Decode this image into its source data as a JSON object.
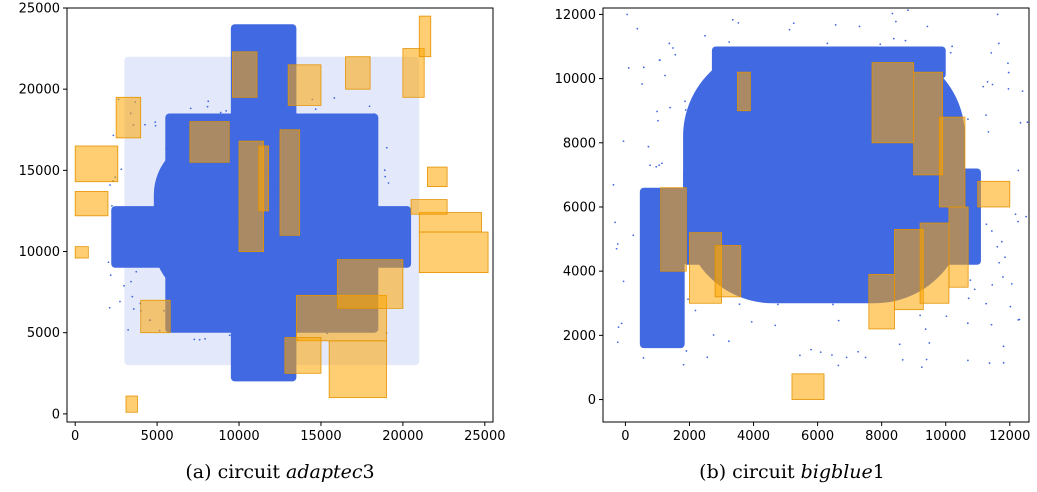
{
  "colors": {
    "placement": "#4169e1",
    "blocks": "#ffa500",
    "block_edge": "#e39200"
  },
  "chart_data": [
    {
      "type": "scatter",
      "title": "",
      "caption_prefix": "(a) circuit ",
      "caption_name": "adaptec",
      "caption_num": "3",
      "xlim": [
        -500,
        25500
      ],
      "ylim": [
        -500,
        25000
      ],
      "xticks": [
        0,
        5000,
        10000,
        15000,
        20000,
        25000
      ],
      "yticks": [
        0,
        5000,
        10000,
        15000,
        20000,
        25000
      ],
      "xtick_labels": [
        "0",
        "5000",
        "10000",
        "15000",
        "20000",
        "25000"
      ],
      "ytick_labels": [
        "0",
        "5000",
        "10000",
        "15000",
        "20000",
        "25000"
      ],
      "grid": false,
      "series": [
        {
          "kind": "cell_cloud",
          "regions": [
            {
              "x": [
                4800,
                16500
              ],
              "y": [
                7000,
                17000
              ]
            },
            {
              "x": [
                2200,
                20500
              ],
              "y": [
                9000,
                12800
              ]
            },
            {
              "x": [
                5500,
                18500
              ],
              "y": [
                5000,
                18500
              ]
            },
            {
              "x": [
                9500,
                13500
              ],
              "y": [
                2000,
                24000
              ]
            },
            {
              "x": [
                3000,
                21000
              ],
              "y": [
                3000,
                22000
              ]
            }
          ]
        },
        {
          "kind": "macro_blocks",
          "rects": [
            {
              "x": 21000,
              "y": 8700,
              "w": 4200,
              "h": 2500
            },
            {
              "x": 21000,
              "y": 11200,
              "w": 3800,
              "h": 1200
            },
            {
              "x": 20500,
              "y": 12300,
              "w": 2200,
              "h": 900
            },
            {
              "x": 15500,
              "y": 1000,
              "w": 3500,
              "h": 3500
            },
            {
              "x": 13500,
              "y": 4500,
              "w": 5500,
              "h": 2800
            },
            {
              "x": 16000,
              "y": 6500,
              "w": 4000,
              "h": 3000
            },
            {
              "x": 12800,
              "y": 2500,
              "w": 2200,
              "h": 2200
            },
            {
              "x": 10000,
              "y": 10000,
              "w": 1500,
              "h": 6800
            },
            {
              "x": 12500,
              "y": 11000,
              "w": 1200,
              "h": 6500
            },
            {
              "x": 11200,
              "y": 12500,
              "w": 600,
              "h": 4000
            },
            {
              "x": 0,
              "y": 14300,
              "w": 2600,
              "h": 2200
            },
            {
              "x": 0,
              "y": 12200,
              "w": 2000,
              "h": 1500
            },
            {
              "x": 7000,
              "y": 15500,
              "w": 2400,
              "h": 2500
            },
            {
              "x": 9600,
              "y": 19500,
              "w": 1500,
              "h": 2800
            },
            {
              "x": 20000,
              "y": 19500,
              "w": 1300,
              "h": 3000
            },
            {
              "x": 21000,
              "y": 22000,
              "w": 700,
              "h": 2500
            },
            {
              "x": 3100,
              "y": 100,
              "w": 700,
              "h": 1000
            },
            {
              "x": 0,
              "y": 9600,
              "w": 800,
              "h": 700
            },
            {
              "x": 21500,
              "y": 14000,
              "w": 1200,
              "h": 1200
            },
            {
              "x": 13000,
              "y": 19000,
              "w": 2000,
              "h": 2500
            },
            {
              "x": 16500,
              "y": 20000,
              "w": 1500,
              "h": 2000
            },
            {
              "x": 4000,
              "y": 5000,
              "w": 1800,
              "h": 2000
            },
            {
              "x": 2500,
              "y": 17000,
              "w": 1500,
              "h": 2500
            }
          ]
        }
      ]
    },
    {
      "type": "scatter",
      "title": "",
      "caption_prefix": "(b) circuit ",
      "caption_name": "bigblue",
      "caption_num": "1",
      "xlim": [
        -700,
        12600
      ],
      "ylim": [
        -700,
        12200
      ],
      "xticks": [
        0,
        2000,
        4000,
        6000,
        8000,
        10000,
        12000
      ],
      "yticks": [
        0,
        2000,
        4000,
        6000,
        8000,
        10000,
        12000
      ],
      "xtick_labels": [
        "0",
        "2000",
        "4000",
        "6000",
        "8000",
        "10000",
        "12000"
      ],
      "ytick_labels": [
        "0",
        "2000",
        "4000",
        "6000",
        "8000",
        "10000",
        "12000"
      ],
      "grid": false,
      "series": [
        {
          "kind": "cell_cloud",
          "regions": [
            {
              "x": [
                1800,
                10600
              ],
              "y": [
                3000,
                11000
              ]
            },
            {
              "x": 1800,
              "y": 4200,
              "w": 9300,
              "h": 3000
            },
            {
              "x": 450,
              "y": 1600,
              "w": 1400,
              "h": 5000
            },
            {
              "x": 2700,
              "y": 10000,
              "w": 7300,
              "h": 1000
            }
          ]
        },
        {
          "kind": "macro_blocks",
          "rects": [
            {
              "x": 7700,
              "y": 8000,
              "w": 1300,
              "h": 2500
            },
            {
              "x": 9000,
              "y": 7000,
              "w": 900,
              "h": 3200
            },
            {
              "x": 9800,
              "y": 6000,
              "w": 800,
              "h": 2800
            },
            {
              "x": 11000,
              "y": 6000,
              "w": 1000,
              "h": 800
            },
            {
              "x": 1100,
              "y": 4000,
              "w": 800,
              "h": 2600
            },
            {
              "x": 2000,
              "y": 3000,
              "w": 1000,
              "h": 2200
            },
            {
              "x": 2800,
              "y": 3200,
              "w": 800,
              "h": 1600
            },
            {
              "x": 7600,
              "y": 2200,
              "w": 800,
              "h": 1700
            },
            {
              "x": 8400,
              "y": 2800,
              "w": 900,
              "h": 2500
            },
            {
              "x": 9200,
              "y": 3000,
              "w": 900,
              "h": 2500
            },
            {
              "x": 3500,
              "y": 9000,
              "w": 400,
              "h": 1200
            },
            {
              "x": 5200,
              "y": 0,
              "w": 1000,
              "h": 800
            },
            {
              "x": 10100,
              "y": 3500,
              "w": 600,
              "h": 2500
            }
          ]
        }
      ]
    }
  ]
}
